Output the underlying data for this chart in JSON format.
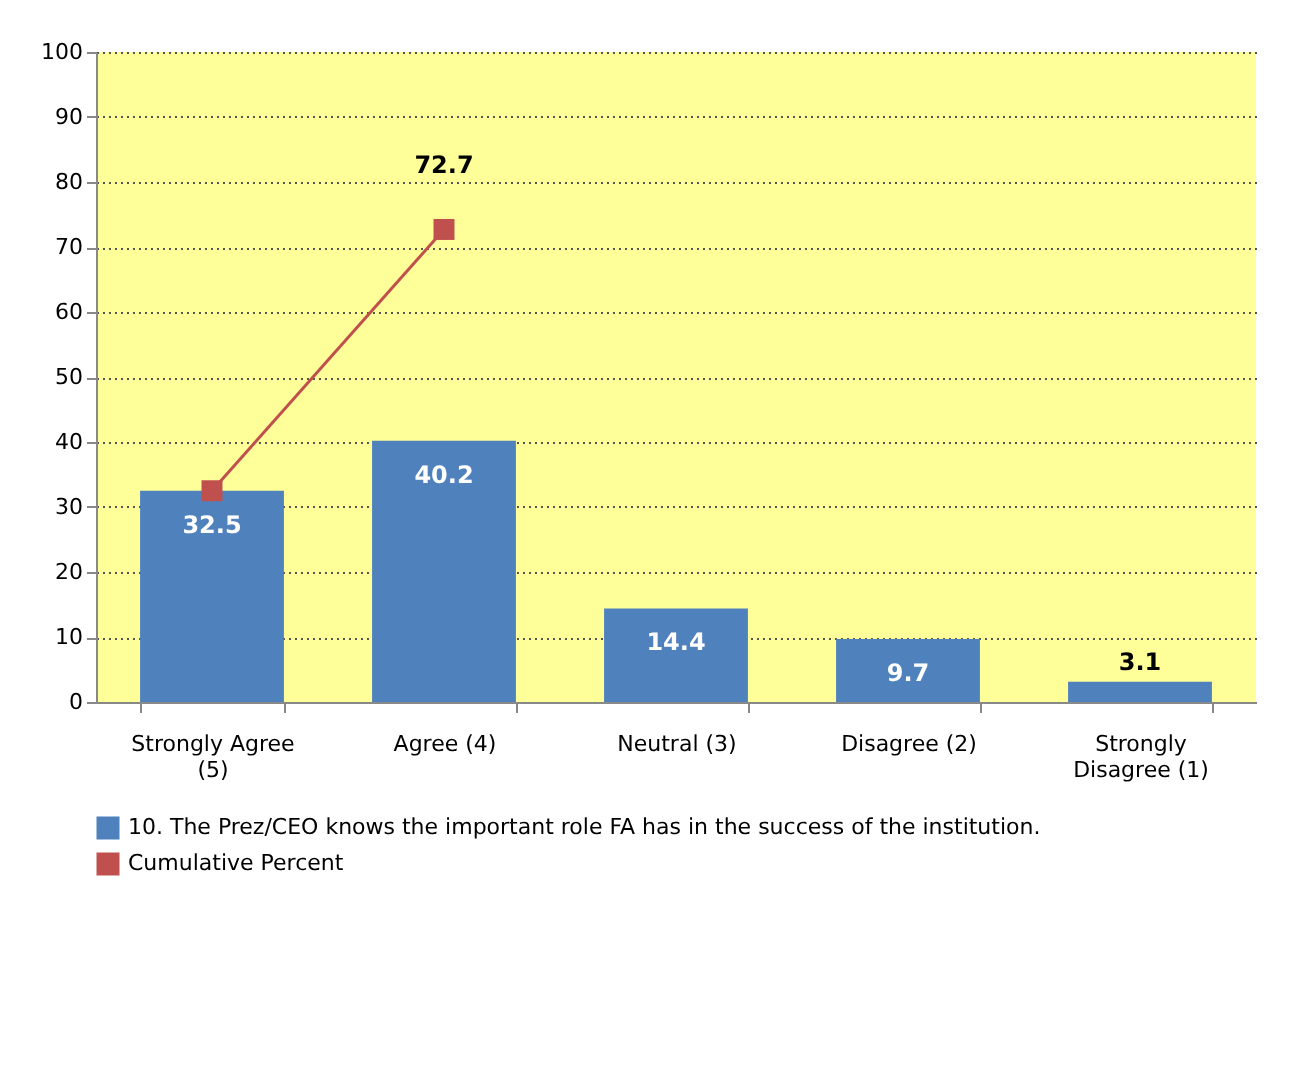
{
  "chart_data": {
    "type": "bar",
    "categories": [
      "Strongly Agree (5)",
      "Agree (4)",
      "Neutral (3)",
      "Disagree (2)",
      "Strongly Disagree (1)"
    ],
    "series": [
      {
        "name": "10. The Prez/CEO knows the important role FA has in the success of the institution.",
        "color": "#4f81bd",
        "values": [
          32.5,
          40.2,
          14.4,
          9.7,
          3.1
        ],
        "value_labels": [
          "32.5",
          "40.2",
          "14.4",
          "9.7",
          "3.1"
        ]
      },
      {
        "name": "Cumulative Percent",
        "type": "line",
        "color": "#c0504d",
        "marker": "square",
        "values": [
          32.5,
          72.7,
          null,
          null,
          null
        ],
        "value_labels": [
          null,
          "72.7",
          null,
          null,
          null
        ]
      }
    ],
    "ylim": [
      0,
      100
    ],
    "yticks": [
      0,
      10,
      20,
      30,
      40,
      50,
      60,
      70,
      80,
      90,
      100
    ],
    "grid": "y",
    "legend": "bottom"
  }
}
